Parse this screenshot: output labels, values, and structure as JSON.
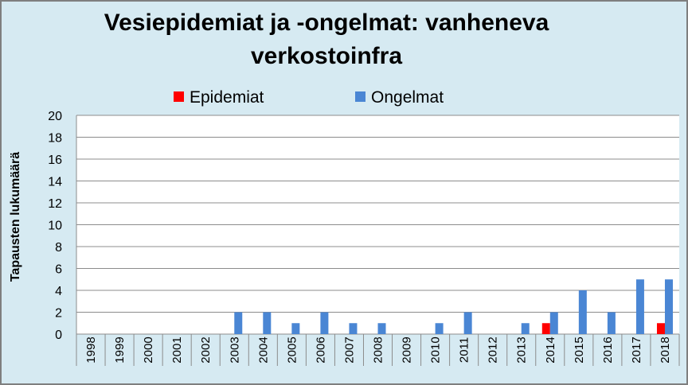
{
  "chart_data": {
    "type": "bar",
    "title": "Vesiepidemiat ja -ongelmat: vanheneva verkostoinfra",
    "xlabel": "",
    "ylabel": "Tapausten lukumäärä",
    "ylim": [
      0,
      20
    ],
    "yticks": [
      0,
      2,
      4,
      6,
      8,
      10,
      12,
      14,
      16,
      18,
      20
    ],
    "grid": true,
    "legend_position": "top",
    "categories": [
      "1998",
      "1999",
      "2000",
      "2001",
      "2002",
      "2003",
      "2004",
      "2005",
      "2006",
      "2007",
      "2008",
      "2009",
      "2010",
      "2011",
      "2012",
      "2013",
      "2014",
      "2015",
      "2016",
      "2017",
      "2018"
    ],
    "series": [
      {
        "name": "Epidemiat",
        "color": "#ff0000",
        "values": [
          0,
          0,
          0,
          0,
          0,
          0,
          0,
          0,
          0,
          0,
          0,
          0,
          0,
          0,
          0,
          0,
          1,
          0,
          0,
          0,
          1
        ]
      },
      {
        "name": "Ongelmat",
        "color": "#4a86d4",
        "values": [
          0,
          0,
          0,
          0,
          0,
          2,
          2,
          1,
          2,
          1,
          1,
          0,
          1,
          2,
          0,
          1,
          2,
          4,
          2,
          5,
          5
        ]
      }
    ]
  }
}
